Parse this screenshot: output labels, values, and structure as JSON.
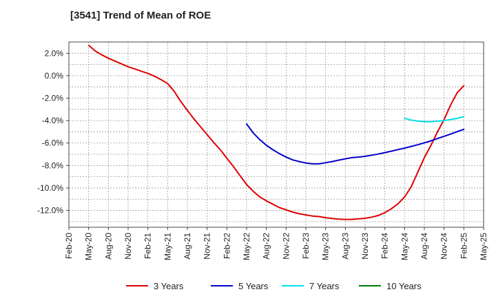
{
  "chart_data": {
    "type": "line",
    "title": "[3541]  Trend of Mean of ROE",
    "xlabel": "",
    "ylabel": "",
    "x_ticks": [
      "Feb-20",
      "May-20",
      "Aug-20",
      "Nov-20",
      "Feb-21",
      "May-21",
      "Aug-21",
      "Nov-21",
      "Feb-22",
      "May-22",
      "Aug-22",
      "Nov-22",
      "Feb-23",
      "May-23",
      "Aug-23",
      "Nov-23",
      "Feb-24",
      "May-24",
      "Aug-24",
      "Nov-24",
      "Feb-25",
      "May-25"
    ],
    "y_ticks": [
      "2.0%",
      "0.0%",
      "-2.0%",
      "-4.0%",
      "-6.0%",
      "-8.0%",
      "-10.0%",
      "-12.0%"
    ],
    "y_tick_values": [
      2,
      0,
      -2,
      -4,
      -6,
      -8,
      -10,
      -12
    ],
    "ylim": [
      -13.5,
      3.0
    ],
    "grid": true,
    "legend_position": "bottom",
    "series": [
      {
        "name": "3 Years",
        "color": "#dd0000",
        "points": [
          [
            "May-20",
            2.7
          ],
          [
            "Jun-20",
            2.2
          ],
          [
            "Jul-20",
            1.85
          ],
          [
            "Aug-20",
            1.55
          ],
          [
            "Sep-20",
            1.3
          ],
          [
            "Oct-20",
            1.05
          ],
          [
            "Nov-20",
            0.8
          ],
          [
            "Dec-20",
            0.6
          ],
          [
            "Jan-21",
            0.4
          ],
          [
            "Feb-21",
            0.2
          ],
          [
            "Mar-21",
            -0.05
          ],
          [
            "Apr-21",
            -0.35
          ],
          [
            "May-21",
            -0.7
          ],
          [
            "Jun-21",
            -1.4
          ],
          [
            "Jul-21",
            -2.3
          ],
          [
            "Aug-21",
            -3.1
          ],
          [
            "Sep-21",
            -3.85
          ],
          [
            "Oct-21",
            -4.55
          ],
          [
            "Nov-21",
            -5.25
          ],
          [
            "Dec-21",
            -5.95
          ],
          [
            "Jan-22",
            -6.6
          ],
          [
            "Feb-22",
            -7.35
          ],
          [
            "Mar-22",
            -8.1
          ],
          [
            "Apr-22",
            -8.9
          ],
          [
            "May-22",
            -9.7
          ],
          [
            "Jun-22",
            -10.3
          ],
          [
            "Jul-22",
            -10.8
          ],
          [
            "Aug-22",
            -11.15
          ],
          [
            "Sep-22",
            -11.45
          ],
          [
            "Oct-22",
            -11.75
          ],
          [
            "Nov-22",
            -11.95
          ],
          [
            "Dec-22",
            -12.15
          ],
          [
            "Jan-23",
            -12.3
          ],
          [
            "Feb-23",
            -12.4
          ],
          [
            "Mar-23",
            -12.5
          ],
          [
            "Apr-23",
            -12.55
          ],
          [
            "May-23",
            -12.65
          ],
          [
            "Jun-23",
            -12.72
          ],
          [
            "Jul-23",
            -12.78
          ],
          [
            "Aug-23",
            -12.8
          ],
          [
            "Sep-23",
            -12.8
          ],
          [
            "Oct-23",
            -12.75
          ],
          [
            "Nov-23",
            -12.7
          ],
          [
            "Dec-23",
            -12.6
          ],
          [
            "Jan-24",
            -12.45
          ],
          [
            "Feb-24",
            -12.2
          ],
          [
            "Mar-24",
            -11.85
          ],
          [
            "Apr-24",
            -11.4
          ],
          [
            "May-24",
            -10.8
          ],
          [
            "Jun-24",
            -9.9
          ],
          [
            "Jul-24",
            -8.6
          ],
          [
            "Aug-24",
            -7.3
          ],
          [
            "Sep-24",
            -6.2
          ],
          [
            "Oct-24",
            -5.0
          ],
          [
            "Nov-24",
            -3.9
          ],
          [
            "Dec-24",
            -2.6
          ],
          [
            "Jan-25",
            -1.5
          ],
          [
            "Feb-25",
            -0.9
          ]
        ]
      },
      {
        "name": "5 Years",
        "color": "#0000cc",
        "points": [
          [
            "May-22",
            -4.3
          ],
          [
            "Jun-22",
            -5.1
          ],
          [
            "Jul-22",
            -5.7
          ],
          [
            "Aug-22",
            -6.2
          ],
          [
            "Sep-22",
            -6.6
          ],
          [
            "Oct-22",
            -6.95
          ],
          [
            "Nov-22",
            -7.25
          ],
          [
            "Dec-22",
            -7.5
          ],
          [
            "Jan-23",
            -7.65
          ],
          [
            "Feb-23",
            -7.78
          ],
          [
            "Mar-23",
            -7.85
          ],
          [
            "Apr-23",
            -7.85
          ],
          [
            "May-23",
            -7.75
          ],
          [
            "Jun-23",
            -7.65
          ],
          [
            "Jul-23",
            -7.52
          ],
          [
            "Aug-23",
            -7.4
          ],
          [
            "Sep-23",
            -7.3
          ],
          [
            "Oct-23",
            -7.25
          ],
          [
            "Nov-23",
            -7.18
          ],
          [
            "Dec-23",
            -7.08
          ],
          [
            "Jan-24",
            -6.98
          ],
          [
            "Feb-24",
            -6.85
          ],
          [
            "Mar-24",
            -6.72
          ],
          [
            "Apr-24",
            -6.58
          ],
          [
            "May-24",
            -6.45
          ],
          [
            "Jun-24",
            -6.3
          ],
          [
            "Jul-24",
            -6.15
          ],
          [
            "Aug-24",
            -5.98
          ],
          [
            "Sep-24",
            -5.8
          ],
          [
            "Oct-24",
            -5.6
          ],
          [
            "Nov-24",
            -5.4
          ],
          [
            "Dec-24",
            -5.2
          ],
          [
            "Jan-25",
            -4.98
          ],
          [
            "Feb-25",
            -4.78
          ]
        ]
      },
      {
        "name": "7 Years",
        "color": "#00e0e8",
        "points": [
          [
            "May-24",
            -3.8
          ],
          [
            "Jun-24",
            -3.95
          ],
          [
            "Jul-24",
            -4.05
          ],
          [
            "Aug-24",
            -4.1
          ],
          [
            "Sep-24",
            -4.1
          ],
          [
            "Oct-24",
            -4.05
          ],
          [
            "Nov-24",
            -4.0
          ],
          [
            "Dec-24",
            -3.9
          ],
          [
            "Jan-25",
            -3.8
          ],
          [
            "Feb-25",
            -3.65
          ]
        ]
      },
      {
        "name": "10 Years",
        "color": "#007700",
        "points": []
      }
    ]
  }
}
